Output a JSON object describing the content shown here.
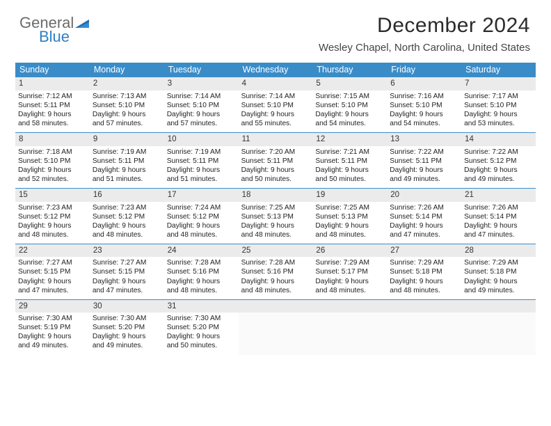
{
  "brand": {
    "part1": "General",
    "part2": "Blue"
  },
  "header": {
    "month": "December 2024",
    "location": "Wesley Chapel, North Carolina, United States"
  },
  "daysOfWeek": [
    "Sunday",
    "Monday",
    "Tuesday",
    "Wednesday",
    "Thursday",
    "Friday",
    "Saturday"
  ],
  "colors": {
    "headerBar": "#3a8cc9",
    "dayNumBg": "#ebebeb",
    "weekDivider": "#3a8cc9"
  },
  "days": [
    {
      "n": "1",
      "sunrise": "Sunrise: 7:12 AM",
      "sunset": "Sunset: 5:11 PM",
      "dl1": "Daylight: 9 hours",
      "dl2": "and 58 minutes."
    },
    {
      "n": "2",
      "sunrise": "Sunrise: 7:13 AM",
      "sunset": "Sunset: 5:10 PM",
      "dl1": "Daylight: 9 hours",
      "dl2": "and 57 minutes."
    },
    {
      "n": "3",
      "sunrise": "Sunrise: 7:14 AM",
      "sunset": "Sunset: 5:10 PM",
      "dl1": "Daylight: 9 hours",
      "dl2": "and 57 minutes."
    },
    {
      "n": "4",
      "sunrise": "Sunrise: 7:14 AM",
      "sunset": "Sunset: 5:10 PM",
      "dl1": "Daylight: 9 hours",
      "dl2": "and 55 minutes."
    },
    {
      "n": "5",
      "sunrise": "Sunrise: 7:15 AM",
      "sunset": "Sunset: 5:10 PM",
      "dl1": "Daylight: 9 hours",
      "dl2": "and 54 minutes."
    },
    {
      "n": "6",
      "sunrise": "Sunrise: 7:16 AM",
      "sunset": "Sunset: 5:10 PM",
      "dl1": "Daylight: 9 hours",
      "dl2": "and 54 minutes."
    },
    {
      "n": "7",
      "sunrise": "Sunrise: 7:17 AM",
      "sunset": "Sunset: 5:10 PM",
      "dl1": "Daylight: 9 hours",
      "dl2": "and 53 minutes."
    },
    {
      "n": "8",
      "sunrise": "Sunrise: 7:18 AM",
      "sunset": "Sunset: 5:10 PM",
      "dl1": "Daylight: 9 hours",
      "dl2": "and 52 minutes."
    },
    {
      "n": "9",
      "sunrise": "Sunrise: 7:19 AM",
      "sunset": "Sunset: 5:11 PM",
      "dl1": "Daylight: 9 hours",
      "dl2": "and 51 minutes."
    },
    {
      "n": "10",
      "sunrise": "Sunrise: 7:19 AM",
      "sunset": "Sunset: 5:11 PM",
      "dl1": "Daylight: 9 hours",
      "dl2": "and 51 minutes."
    },
    {
      "n": "11",
      "sunrise": "Sunrise: 7:20 AM",
      "sunset": "Sunset: 5:11 PM",
      "dl1": "Daylight: 9 hours",
      "dl2": "and 50 minutes."
    },
    {
      "n": "12",
      "sunrise": "Sunrise: 7:21 AM",
      "sunset": "Sunset: 5:11 PM",
      "dl1": "Daylight: 9 hours",
      "dl2": "and 50 minutes."
    },
    {
      "n": "13",
      "sunrise": "Sunrise: 7:22 AM",
      "sunset": "Sunset: 5:11 PM",
      "dl1": "Daylight: 9 hours",
      "dl2": "and 49 minutes."
    },
    {
      "n": "14",
      "sunrise": "Sunrise: 7:22 AM",
      "sunset": "Sunset: 5:12 PM",
      "dl1": "Daylight: 9 hours",
      "dl2": "and 49 minutes."
    },
    {
      "n": "15",
      "sunrise": "Sunrise: 7:23 AM",
      "sunset": "Sunset: 5:12 PM",
      "dl1": "Daylight: 9 hours",
      "dl2": "and 48 minutes."
    },
    {
      "n": "16",
      "sunrise": "Sunrise: 7:23 AM",
      "sunset": "Sunset: 5:12 PM",
      "dl1": "Daylight: 9 hours",
      "dl2": "and 48 minutes."
    },
    {
      "n": "17",
      "sunrise": "Sunrise: 7:24 AM",
      "sunset": "Sunset: 5:12 PM",
      "dl1": "Daylight: 9 hours",
      "dl2": "and 48 minutes."
    },
    {
      "n": "18",
      "sunrise": "Sunrise: 7:25 AM",
      "sunset": "Sunset: 5:13 PM",
      "dl1": "Daylight: 9 hours",
      "dl2": "and 48 minutes."
    },
    {
      "n": "19",
      "sunrise": "Sunrise: 7:25 AM",
      "sunset": "Sunset: 5:13 PM",
      "dl1": "Daylight: 9 hours",
      "dl2": "and 48 minutes."
    },
    {
      "n": "20",
      "sunrise": "Sunrise: 7:26 AM",
      "sunset": "Sunset: 5:14 PM",
      "dl1": "Daylight: 9 hours",
      "dl2": "and 47 minutes."
    },
    {
      "n": "21",
      "sunrise": "Sunrise: 7:26 AM",
      "sunset": "Sunset: 5:14 PM",
      "dl1": "Daylight: 9 hours",
      "dl2": "and 47 minutes."
    },
    {
      "n": "22",
      "sunrise": "Sunrise: 7:27 AM",
      "sunset": "Sunset: 5:15 PM",
      "dl1": "Daylight: 9 hours",
      "dl2": "and 47 minutes."
    },
    {
      "n": "23",
      "sunrise": "Sunrise: 7:27 AM",
      "sunset": "Sunset: 5:15 PM",
      "dl1": "Daylight: 9 hours",
      "dl2": "and 47 minutes."
    },
    {
      "n": "24",
      "sunrise": "Sunrise: 7:28 AM",
      "sunset": "Sunset: 5:16 PM",
      "dl1": "Daylight: 9 hours",
      "dl2": "and 48 minutes."
    },
    {
      "n": "25",
      "sunrise": "Sunrise: 7:28 AM",
      "sunset": "Sunset: 5:16 PM",
      "dl1": "Daylight: 9 hours",
      "dl2": "and 48 minutes."
    },
    {
      "n": "26",
      "sunrise": "Sunrise: 7:29 AM",
      "sunset": "Sunset: 5:17 PM",
      "dl1": "Daylight: 9 hours",
      "dl2": "and 48 minutes."
    },
    {
      "n": "27",
      "sunrise": "Sunrise: 7:29 AM",
      "sunset": "Sunset: 5:18 PM",
      "dl1": "Daylight: 9 hours",
      "dl2": "and 48 minutes."
    },
    {
      "n": "28",
      "sunrise": "Sunrise: 7:29 AM",
      "sunset": "Sunset: 5:18 PM",
      "dl1": "Daylight: 9 hours",
      "dl2": "and 49 minutes."
    },
    {
      "n": "29",
      "sunrise": "Sunrise: 7:30 AM",
      "sunset": "Sunset: 5:19 PM",
      "dl1": "Daylight: 9 hours",
      "dl2": "and 49 minutes."
    },
    {
      "n": "30",
      "sunrise": "Sunrise: 7:30 AM",
      "sunset": "Sunset: 5:20 PM",
      "dl1": "Daylight: 9 hours",
      "dl2": "and 49 minutes."
    },
    {
      "n": "31",
      "sunrise": "Sunrise: 7:30 AM",
      "sunset": "Sunset: 5:20 PM",
      "dl1": "Daylight: 9 hours",
      "dl2": "and 50 minutes."
    }
  ]
}
